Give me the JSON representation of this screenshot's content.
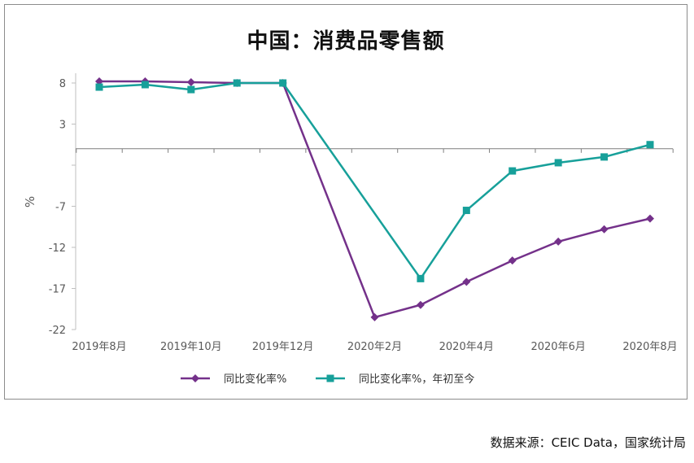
{
  "title": "中国：消费品零售额",
  "source": "数据来源：CEIC Data，国家统计局",
  "chart_data": {
    "type": "line",
    "title": "中国：消费品零售额",
    "ylabel": "%",
    "xlabel": "",
    "ylim": [
      -22,
      10
    ],
    "yticks": [
      8,
      3,
      -7,
      -12,
      -17,
      -22
    ],
    "x": [
      "2019-08",
      "2019-09",
      "2019-10",
      "2019-11",
      "2019-12",
      "2020-01",
      "2020-02",
      "2020-03",
      "2020-04",
      "2020-05",
      "2020-06",
      "2020-07",
      "2020-08"
    ],
    "xtick_labels": [
      "2019年8月",
      "2019年10月",
      "2019年12月",
      "2020年2月",
      "2020年4月",
      "2020年6月",
      "2020年8月"
    ],
    "xtick_indices": [
      0,
      2,
      4,
      6,
      8,
      10,
      12
    ],
    "legend_position": "bottom",
    "series": [
      {
        "name": "同比变化率%",
        "color": "#74318a",
        "marker": "diamond",
        "points": [
          [
            0,
            8.2
          ],
          [
            1,
            8.2
          ],
          [
            2,
            8.1
          ],
          [
            3,
            8.0
          ],
          [
            4,
            8.0
          ],
          [
            6,
            -20.5
          ],
          [
            7,
            -19.0
          ],
          [
            8,
            -16.2
          ],
          [
            9,
            -13.6
          ],
          [
            10,
            -11.3
          ],
          [
            11,
            -9.8
          ],
          [
            12,
            -8.5
          ]
        ]
      },
      {
        "name": "同比变化率%，年初至今",
        "color": "#17a09a",
        "marker": "square",
        "points": [
          [
            0,
            7.5
          ],
          [
            1,
            7.8
          ],
          [
            2,
            7.2
          ],
          [
            3,
            8.0
          ],
          [
            4,
            8.0
          ],
          [
            7,
            -15.8
          ],
          [
            8,
            -7.5
          ],
          [
            9,
            -2.7
          ],
          [
            10,
            -1.7
          ],
          [
            11,
            -1.0
          ],
          [
            12,
            0.5
          ]
        ]
      }
    ]
  }
}
